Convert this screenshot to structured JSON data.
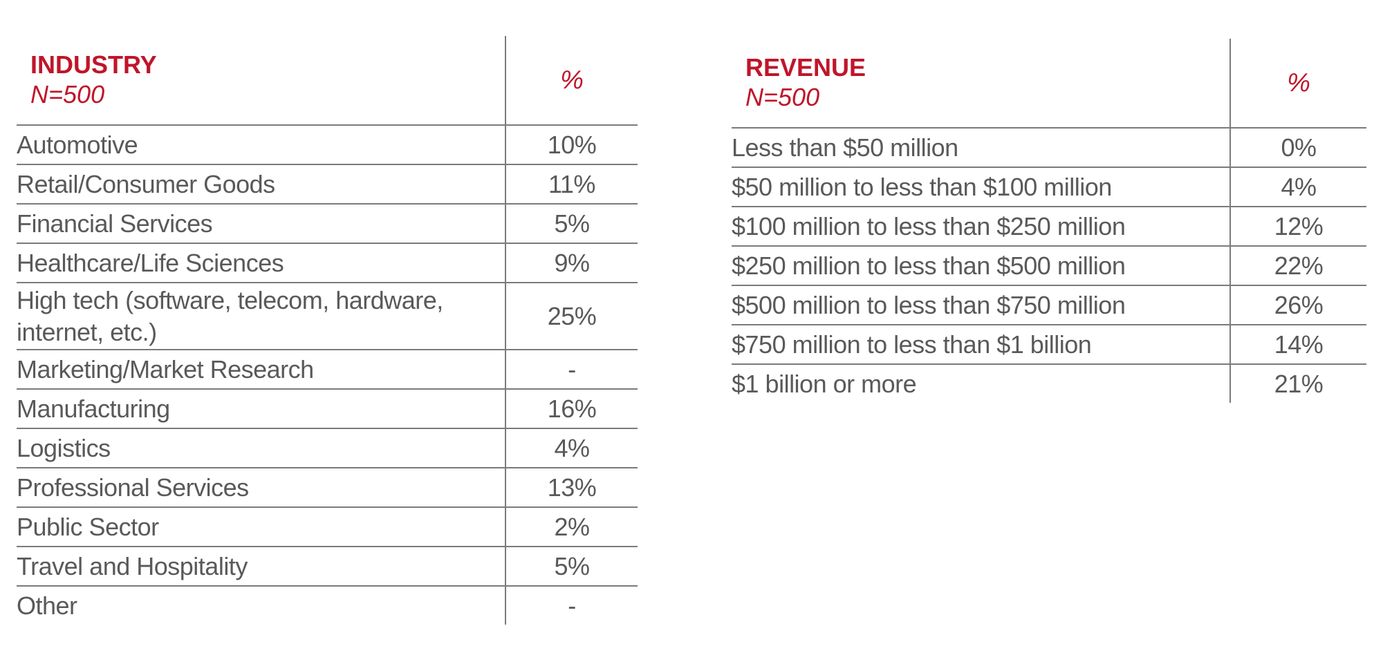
{
  "industry": {
    "title": "INDUSTRY",
    "n": "N=500",
    "pct_header": "%",
    "rows": [
      {
        "label": "Automotive",
        "value": "10%"
      },
      {
        "label": "Retail/Consumer Goods",
        "value": "11%"
      },
      {
        "label": "Financial Services",
        "value": "5%"
      },
      {
        "label": "Healthcare/Life Sciences",
        "value": "9%"
      },
      {
        "label": "High tech (software, telecom, hardware,",
        "label2": "internet, etc.)",
        "value": "25%"
      },
      {
        "label": "Marketing/Market Research",
        "value": "-"
      },
      {
        "label": "Manufacturing",
        "value": "16%"
      },
      {
        "label": "Logistics",
        "value": "4%"
      },
      {
        "label": "Professional Services",
        "value": "13%"
      },
      {
        "label": "Public Sector",
        "value": "2%"
      },
      {
        "label": "Travel and Hospitality",
        "value": "5%"
      },
      {
        "label": "Other",
        "value": "-"
      }
    ]
  },
  "revenue": {
    "title": "REVENUE",
    "n": "N=500",
    "pct_header": "%",
    "rows": [
      {
        "label": "Less than $50 million",
        "value": "0%"
      },
      {
        "label": "$50 million to less than $100 million",
        "value": "4%"
      },
      {
        "label": "$100 million to less than $250 million",
        "value": "12%"
      },
      {
        "label": "$250 million to less than $500 million",
        "value": "22%"
      },
      {
        "label": "$500 million to less than $750 million",
        "value": "26%"
      },
      {
        "label": "$750 million to less than $1 billion",
        "value": "14%"
      },
      {
        "label": "$1 billion or more",
        "value": "21%"
      }
    ]
  }
}
